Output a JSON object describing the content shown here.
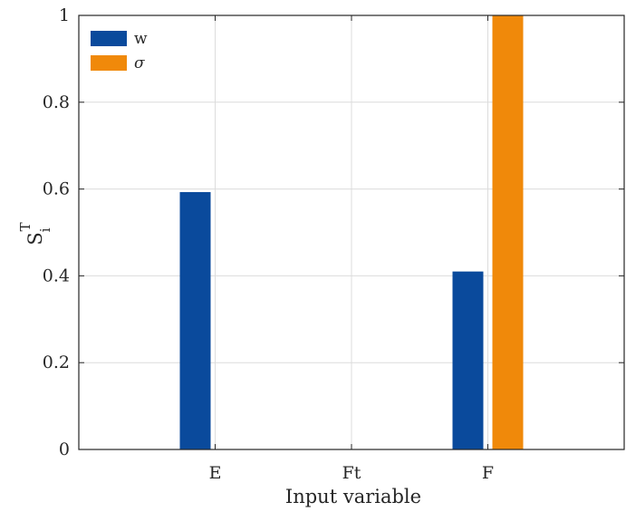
{
  "chart_data": {
    "type": "bar",
    "categories": [
      "E",
      "Ft",
      "F"
    ],
    "series": [
      {
        "name": "w",
        "values": [
          0.593,
          0,
          0.41
        ],
        "color": "#0a4a9c"
      },
      {
        "name": "σ",
        "values": [
          0,
          0,
          1.0
        ],
        "color": "#f0890a"
      }
    ],
    "xlabel": "Input variable",
    "ylabel_main": "S",
    "ylabel_sup": "T",
    "ylabel_sub": "i",
    "ylim": [
      0,
      1
    ],
    "yticks": [
      "0",
      "0.2",
      "0.4",
      "0.6",
      "0.8",
      "1"
    ],
    "ytick_values": [
      0,
      0.2,
      0.4,
      0.6,
      0.8,
      1
    ],
    "grid": true,
    "legend_position": "top-left"
  }
}
